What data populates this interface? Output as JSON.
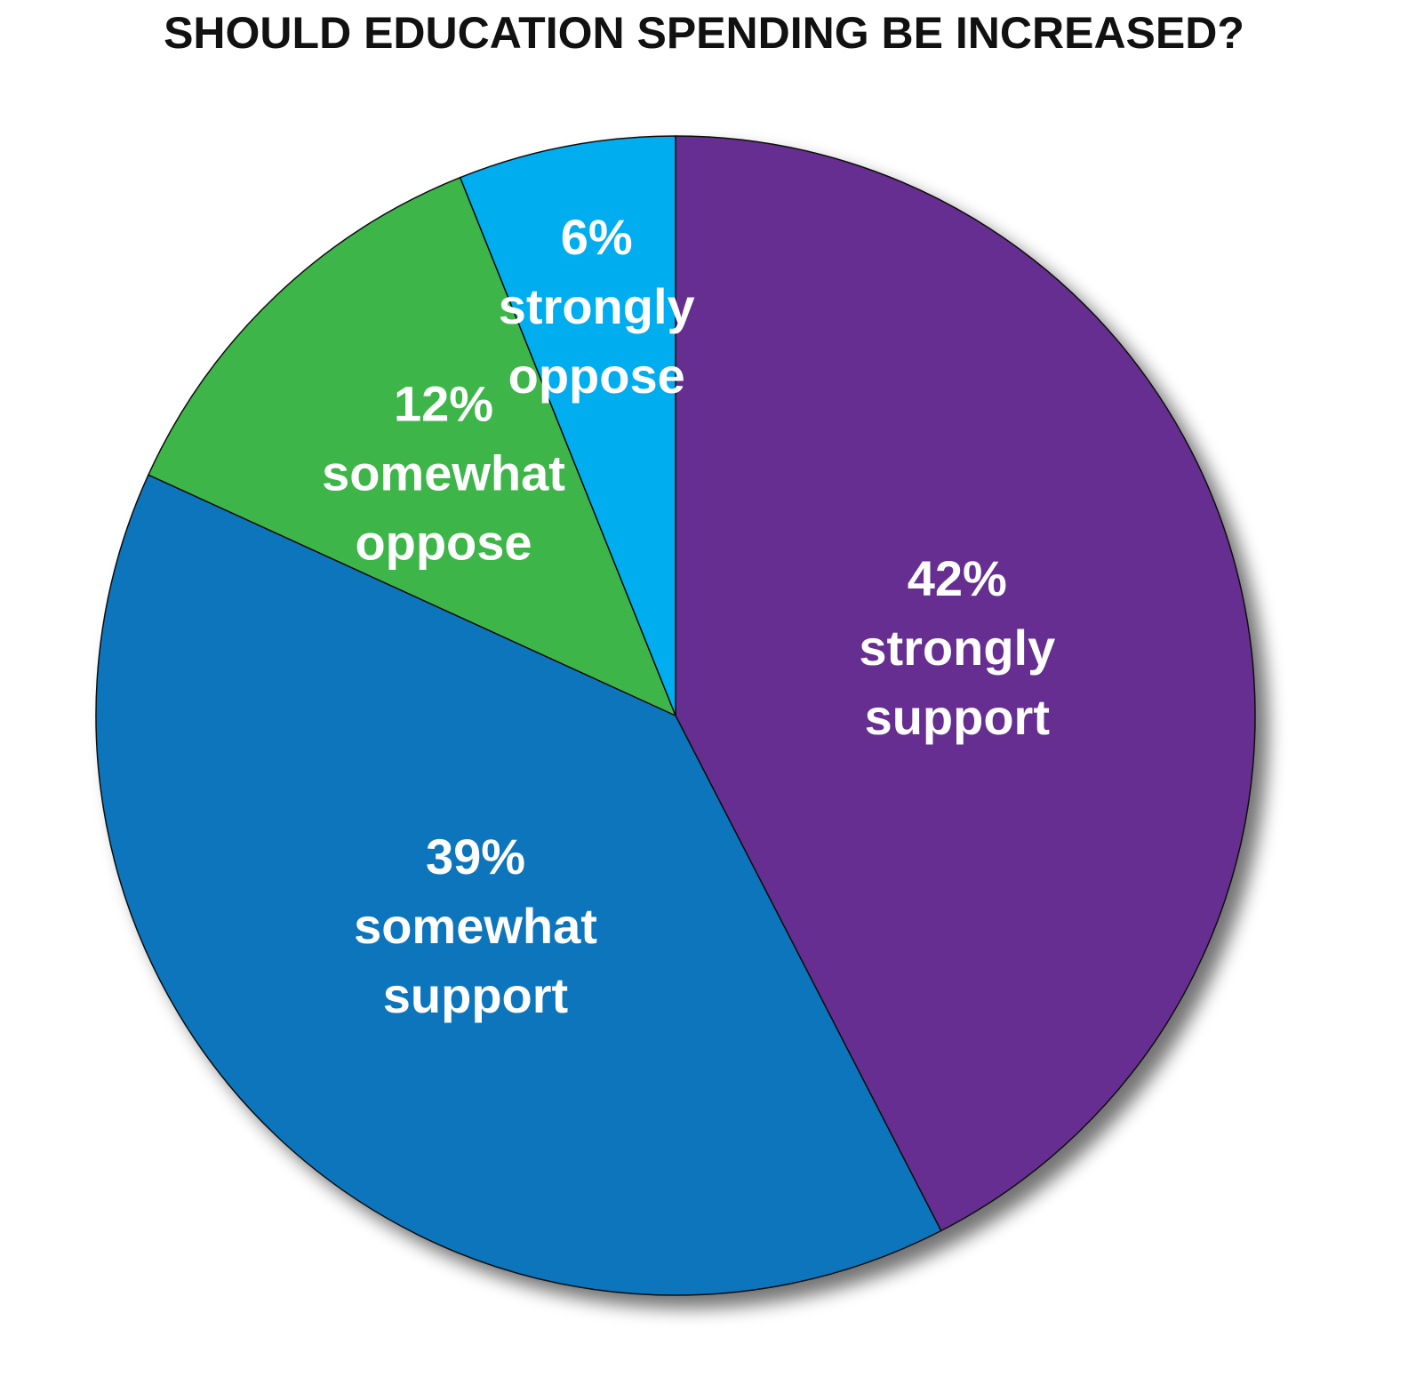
{
  "chart_data": {
    "type": "pie",
    "title": "SHOULD EDUCATION SPENDING BE INCREASED?",
    "start_angle_deg": 0,
    "direction": "clockwise",
    "slices": [
      {
        "key": "strongly-support",
        "value": 42,
        "percent_label": "42%",
        "label_lines": [
          "strongly",
          "support"
        ],
        "color": "#662d91"
      },
      {
        "key": "somewhat-support",
        "value": 39,
        "percent_label": "39%",
        "label_lines": [
          "somewhat",
          "support"
        ],
        "color": "#1175bc"
      },
      {
        "key": "somewhat-oppose",
        "value": 12,
        "percent_label": "12%",
        "label_lines": [
          "somewhat",
          "oppose"
        ],
        "color": "#3db54a"
      },
      {
        "key": "strongly-oppose",
        "value": 6,
        "percent_label": "6%",
        "label_lines": [
          "strongly",
          "oppose"
        ],
        "color": "#00adee"
      }
    ]
  }
}
